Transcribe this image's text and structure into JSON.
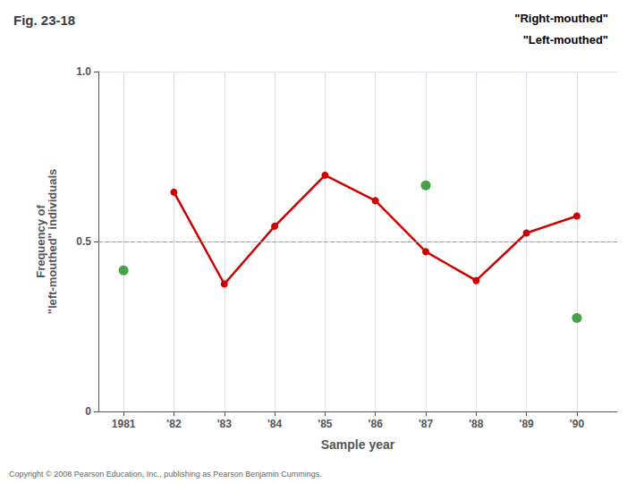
{
  "chart_data": {
    "type": "line",
    "title": "Fig. 23-18",
    "xlabel": "Sample year",
    "ylabel": "Frequency of\n\"left-mouthed\" individuals",
    "xlim": [
      1980.5,
      1990.8
    ],
    "xticks": [
      1981,
      {
        "value": 1982,
        "label": "'82"
      },
      {
        "value": 1983,
        "label": "'83"
      },
      {
        "value": 1984,
        "label": "'84"
      },
      {
        "value": 1985,
        "label": "'85"
      },
      {
        "value": 1986,
        "label": "'86"
      },
      {
        "value": 1987,
        "label": "'87"
      },
      {
        "value": 1988,
        "label": "'88"
      },
      {
        "value": 1989,
        "label": "'89"
      },
      {
        "value": 1990,
        "label": "'90"
      }
    ],
    "ylim": [
      0,
      1.0
    ],
    "yticks": [
      0,
      0.5,
      {
        "value": 1.0,
        "label": "1.0"
      }
    ],
    "grid": true,
    "series": [
      {
        "type": "line",
        "color": "#cc0000",
        "marker": "circle",
        "x": [
          1982,
          1983,
          1984,
          1985,
          1986,
          1987,
          1988,
          1989,
          1990
        ],
        "values": [
          0.645,
          0.375,
          0.545,
          0.695,
          0.62,
          0.47,
          0.385,
          0.525,
          0.575
        ]
      },
      {
        "type": "scatter",
        "color": "#1a8c1a",
        "marker": "circle",
        "x": [
          1981,
          1987,
          1990
        ],
        "values": [
          0.415,
          0.665,
          0.275
        ]
      }
    ],
    "hline": {
      "y": 0.5,
      "line_style": "dashed",
      "color": "#999999"
    },
    "annotations": [
      "\"Right-mouthed\"",
      "\"Left-mouthed\"",
      "Copyright © 2008 Pearson Education, Inc., publishing as Pearson Benjamin Cummings."
    ]
  }
}
